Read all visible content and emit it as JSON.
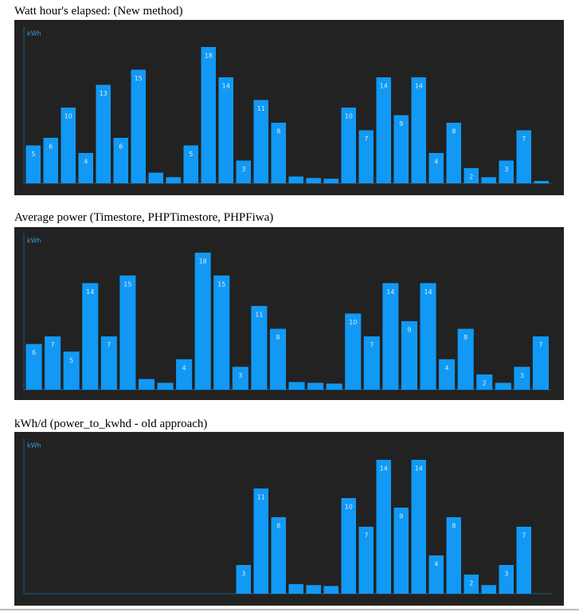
{
  "chart_data": [
    {
      "type": "bar",
      "title": "Watt hour's elapsed: (New method)",
      "y_label": "kWh",
      "color": "#1199f5",
      "ylim": [
        0,
        20
      ],
      "values": [
        5,
        6,
        10,
        4,
        13,
        6,
        15,
        1.4,
        0.8,
        5,
        18,
        14,
        3,
        11,
        8,
        0.9,
        0.7,
        0.6,
        10,
        7,
        14,
        9,
        14,
        4,
        8,
        2,
        0.8,
        3,
        7,
        0.3
      ],
      "value_labels": [
        "5",
        "6",
        "10",
        "4",
        "13",
        "6",
        "15",
        null,
        null,
        "5",
        "18",
        "14",
        "3",
        "11",
        "8",
        null,
        null,
        null,
        "10",
        "7",
        "14",
        "9",
        "14",
        "4",
        "8",
        "2",
        null,
        "3",
        "7",
        null
      ]
    },
    {
      "type": "bar",
      "title": "Average power (Timestore, PHPTimestore, PHPFiwa)",
      "y_label": "kWh",
      "color": "#1199f5",
      "ylim": [
        0,
        20
      ],
      "values": [
        6,
        7,
        5,
        14,
        7,
        15,
        1.4,
        0.9,
        4,
        18,
        15,
        3,
        11,
        8,
        1,
        0.9,
        0.8,
        10,
        7,
        14,
        9,
        14,
        4,
        8,
        2,
        0.9,
        3,
        7
      ],
      "value_labels": [
        "6",
        "7",
        "5",
        "14",
        "7",
        "15",
        null,
        null,
        "4",
        "18",
        "15",
        "3",
        "11",
        "8",
        null,
        null,
        null,
        "10",
        "7",
        "14",
        "9",
        "14",
        "4",
        "8",
        "2",
        null,
        "3",
        "7"
      ]
    },
    {
      "type": "bar",
      "title": "kWh/d (power_to_kwhd - old approach)",
      "y_label": "kWh",
      "color": "#1199f5",
      "ylim": [
        0,
        16
      ],
      "values": [
        null,
        null,
        null,
        null,
        null,
        null,
        null,
        null,
        null,
        null,
        null,
        null,
        3,
        11,
        8,
        1,
        0.9,
        0.8,
        10,
        7,
        14,
        9,
        14,
        4,
        8,
        2,
        0.9,
        3,
        7,
        null
      ],
      "value_labels": [
        null,
        null,
        null,
        null,
        null,
        null,
        null,
        null,
        null,
        null,
        null,
        null,
        "3",
        "11",
        "8",
        null,
        null,
        null,
        "10",
        "7",
        "14",
        "9",
        "14",
        "4",
        "8",
        "2",
        null,
        "3",
        "7",
        null
      ]
    }
  ]
}
